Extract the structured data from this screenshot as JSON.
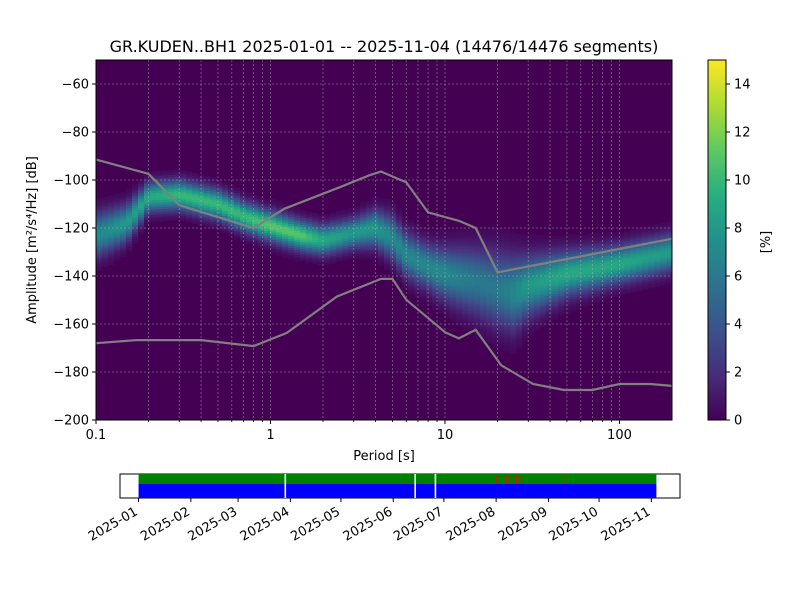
{
  "chart_data": [
    {
      "type": "heatmap",
      "title": "GR.KUDEN..BH1   2025-01-01 -- 2025-11-04  (14476/14476 segments)",
      "xlabel": "Period [s]",
      "ylabel": "Amplitude [m²/s⁴/Hz] [dB]",
      "xscale": "log",
      "xlim": [
        0.1,
        200
      ],
      "ylim": [
        -200,
        -50
      ],
      "xticks": [
        0.1,
        1,
        10,
        100
      ],
      "xtick_labels": [
        "0.1",
        "1",
        "10",
        "100"
      ],
      "yticks": [
        -200,
        -180,
        -160,
        -140,
        -120,
        -100,
        -80,
        -60
      ],
      "ytick_labels": [
        "−200",
        "−180",
        "−160",
        "−140",
        "−120",
        "−100",
        "−80",
        "−60"
      ],
      "grid": true,
      "colormap": "viridis",
      "colorbar": {
        "label": "[%]",
        "range": [
          0,
          15
        ],
        "ticks": [
          0,
          2,
          4,
          6,
          8,
          10,
          12,
          14
        ],
        "tick_labels": [
          "0",
          "2",
          "4",
          "6",
          "8",
          "10",
          "12",
          "14"
        ]
      },
      "density_ridge": {
        "period": [
          0.1,
          0.15,
          0.2,
          0.3,
          0.5,
          0.7,
          1.0,
          1.5,
          2.0,
          3.0,
          4.0,
          5.0,
          6.0,
          8.0,
          10,
          15,
          20,
          25,
          30,
          50,
          100,
          200
        ],
        "mode_db": [
          -123,
          -118,
          -107,
          -106,
          -110,
          -115,
          -119,
          -123,
          -125,
          -122,
          -120,
          -124,
          -131,
          -136,
          -139,
          -142,
          -145,
          -147,
          -144,
          -139,
          -135,
          -130
        ],
        "peak_percent": [
          7,
          8,
          9,
          10,
          10,
          10,
          11,
          11,
          9,
          8,
          8,
          7,
          7,
          7,
          7,
          6,
          6,
          7,
          8,
          9,
          9,
          8
        ],
        "spread_db": [
          6,
          5,
          4,
          4,
          4,
          4,
          4,
          4,
          4,
          4,
          5,
          6,
          6,
          6,
          7,
          9,
          10,
          10,
          8,
          6,
          5,
          5
        ]
      },
      "series": [
        {
          "period": [
            0.1,
            0.2,
            0.3,
            0.8,
            1.2,
            2.5,
            3.7,
            4.3,
            6.0,
            8.0,
            12,
            15,
            20,
            200
          ],
          "db": [
            -91.5,
            -97.4,
            -110.5,
            -120.0,
            -112.0,
            -103.0,
            -98.0,
            -96.5,
            -101.0,
            -113.5,
            -117.0,
            -120.0,
            -138.5,
            -124.5
          ]
        },
        {
          "period": [
            0.1,
            0.17,
            0.4,
            0.8,
            1.24,
            2.4,
            4.3,
            5.0,
            6.0,
            10,
            12,
            15,
            21,
            32,
            48,
            70,
            100,
            150,
            200
          ],
          "db": [
            -168.0,
            -166.7,
            -166.7,
            -169.2,
            -163.7,
            -148.6,
            -141.2,
            -141.2,
            -149.9,
            -163.4,
            -166.0,
            -162.4,
            -177.2,
            -185.0,
            -187.5,
            -187.5,
            -185.0,
            -185.0,
            -185.8
          ]
        }
      ],
      "series_color": "#808080"
    },
    {
      "type": "timeline",
      "xlim": [
        "2024-12-21",
        "2025-11-18"
      ],
      "data_span": [
        "2025-01-01",
        "2025-11-04"
      ],
      "tick_labels": [
        "2025-01",
        "2025-02",
        "2025-03",
        "2025-04",
        "2025-05",
        "2025-06",
        "2025-07",
        "2025-08",
        "2025-09",
        "2025-10",
        "2025-11"
      ],
      "tick_dates": [
        "2025-01-01",
        "2025-02-01",
        "2025-03-01",
        "2025-04-01",
        "2025-05-01",
        "2025-06-01",
        "2025-07-01",
        "2025-08-01",
        "2025-09-01",
        "2025-10-01",
        "2025-11-01"
      ],
      "gap_dates": [
        "2025-03-29",
        "2025-06-14",
        "2025-06-26"
      ],
      "flag_dates": [
        "2025-08-01",
        "2025-08-07",
        "2025-08-10",
        "2025-08-13",
        "2025-08-15",
        "2025-09-11"
      ],
      "available_color": "#008000",
      "used_color": "#0000ff",
      "flag_color": "#ff0000"
    }
  ]
}
